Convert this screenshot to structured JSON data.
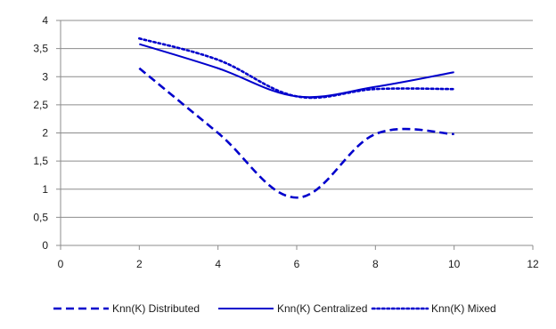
{
  "chart_data": {
    "type": "line",
    "title": "",
    "xlabel": "",
    "ylabel": "",
    "xlim": [
      0,
      12
    ],
    "ylim": [
      0,
      4
    ],
    "x_ticks": [
      "0",
      "2",
      "4",
      "6",
      "8",
      "10",
      "12"
    ],
    "y_ticks": [
      "0",
      "0,5",
      "1",
      "1,5",
      "2",
      "2,5",
      "3",
      "3,5",
      "4"
    ],
    "grid": "horizontal",
    "legend_position": "bottom",
    "x": [
      2,
      4,
      6,
      8,
      10
    ],
    "series": [
      {
        "name": "Knn(K) Distributed",
        "values": [
          3.15,
          2.0,
          0.85,
          1.98,
          1.98
        ],
        "style": "dashed",
        "color": "#0000cc"
      },
      {
        "name": "Knn(K) Centralized",
        "values": [
          3.58,
          3.15,
          2.65,
          2.82,
          3.08
        ],
        "style": "solid",
        "color": "#0000cc"
      },
      {
        "name": "Knn(K) Mixed",
        "values": [
          3.68,
          3.3,
          2.65,
          2.78,
          2.78
        ],
        "style": "dotted",
        "color": "#0000cc"
      }
    ]
  }
}
